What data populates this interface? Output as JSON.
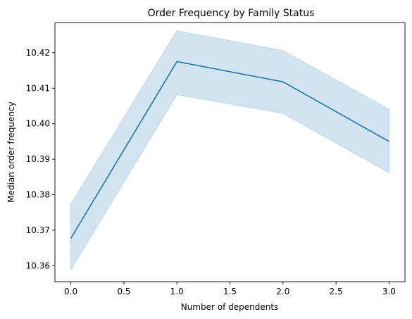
{
  "chart_data": {
    "type": "line",
    "title": "Order Frequency by Family Status",
    "xlabel": "Number of dependents",
    "ylabel": "Median order frequency",
    "xlim": [
      -0.15,
      3.15
    ],
    "ylim": [
      10.3555,
      10.4285
    ],
    "xticks": [
      0.0,
      0.5,
      1.0,
      1.5,
      2.0,
      2.5,
      3.0
    ],
    "xtick_labels": [
      "0.0",
      "0.5",
      "1.0",
      "1.5",
      "2.0",
      "2.5",
      "3.0"
    ],
    "yticks": [
      10.36,
      10.37,
      10.38,
      10.39,
      10.4,
      10.41,
      10.42
    ],
    "ytick_labels": [
      "10.36",
      "10.37",
      "10.38",
      "10.39",
      "10.40",
      "10.41",
      "10.42"
    ],
    "grid": false,
    "series": [
      {
        "x": [
          0,
          1,
          2,
          3
        ],
        "values": [
          10.3677,
          10.4175,
          10.4118,
          10.395
        ],
        "ci_lower": [
          10.3588,
          10.4082,
          10.4029,
          10.3862
        ],
        "ci_upper": [
          10.3773,
          10.4262,
          10.4206,
          10.4041
        ],
        "color": "#1f77b4"
      }
    ]
  }
}
